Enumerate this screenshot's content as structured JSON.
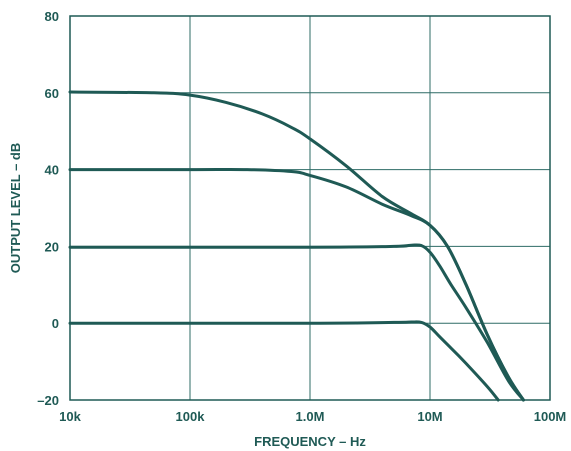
{
  "chart_data": {
    "type": "line",
    "title": "",
    "xlabel": "FREQUENCY – Hz",
    "ylabel": "OUTPUT LEVEL – dB",
    "x_scale": "log",
    "xlim": [
      10000,
      100000000
    ],
    "ylim": [
      -20,
      80
    ],
    "x_ticks": [
      {
        "value": 10000,
        "label": "10k"
      },
      {
        "value": 100000,
        "label": "100k"
      },
      {
        "value": 1000000,
        "label": "1.0M"
      },
      {
        "value": 10000000,
        "label": "10M"
      },
      {
        "value": 100000000,
        "label": "100M"
      }
    ],
    "y_ticks": [
      {
        "value": 80,
        "label": "80"
      },
      {
        "value": 60,
        "label": "60"
      },
      {
        "value": 40,
        "label": "40"
      },
      {
        "value": 20,
        "label": "20"
      },
      {
        "value": 0,
        "label": "0"
      },
      {
        "value": -20,
        "label": "–20"
      }
    ],
    "grid": true,
    "colors": {
      "line": "#1f5a55",
      "grid": "#2e6b66",
      "text": "#1f5a55"
    },
    "series": [
      {
        "x": [
          10000,
          50000,
          100000,
          200000,
          400000,
          700000,
          1000000,
          2000000,
          4000000,
          7000000,
          10000000,
          14000000,
          20000000,
          30000000,
          45000000,
          60000000
        ],
        "y": [
          60.2,
          60,
          59.4,
          57.5,
          54.5,
          51,
          48,
          41,
          33,
          28.5,
          25.5,
          20,
          10,
          -3,
          -14,
          -21
        ]
      },
      {
        "x": [
          10000,
          100000,
          300000,
          700000,
          1000000,
          2000000,
          4000000,
          7000000,
          10000000,
          14000000,
          20000000,
          30000000,
          45000000,
          60000000
        ],
        "y": [
          40,
          40,
          40,
          39.5,
          38.5,
          35.5,
          31,
          28,
          25.5,
          20,
          10,
          -3,
          -14,
          -21
        ]
      },
      {
        "x": [
          10000,
          1000000,
          5000000,
          7000000,
          8500000,
          10000000,
          12000000,
          15000000,
          20000000,
          30000000,
          45000000,
          60000000
        ],
        "y": [
          19.8,
          19.8,
          20,
          20.3,
          20.2,
          18.5,
          15,
          10,
          4,
          -5,
          -15,
          -21
        ]
      },
      {
        "x": [
          10000,
          1000000,
          5000000,
          7000000,
          8500000,
          10000000,
          12000000,
          15000000,
          20000000,
          30000000,
          37000000
        ],
        "y": [
          0,
          0,
          0.2,
          0.3,
          0.2,
          -1,
          -3.5,
          -6.5,
          -10.5,
          -16.5,
          -20.5
        ]
      }
    ]
  }
}
